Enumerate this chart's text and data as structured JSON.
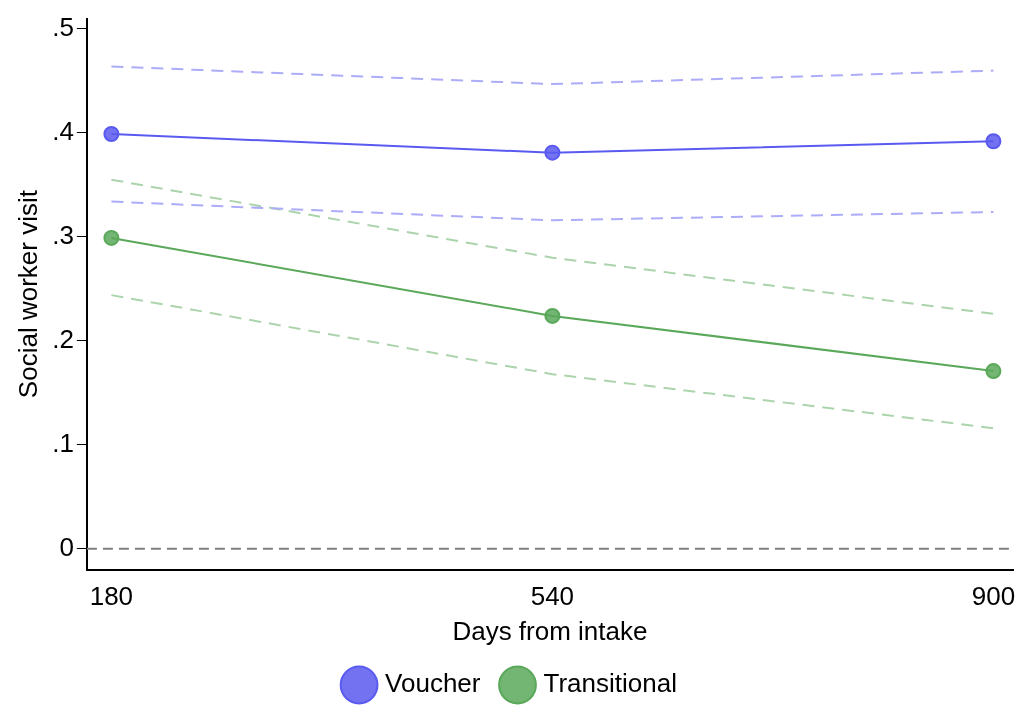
{
  "chart_data": {
    "type": "line",
    "xlabel": "Days from intake",
    "ylabel": "Social worker visit",
    "x": [
      180,
      540,
      900
    ],
    "series": [
      {
        "name": "Voucher",
        "color": "#5a5af0",
        "values": [
          0.399,
          0.381,
          0.392
        ]
      },
      {
        "color": "#acacf8",
        "values": [
          0.334,
          0.316,
          0.324
        ],
        "line_style": "dashed",
        "marker": "none"
      },
      {
        "color": "#acacf8",
        "values": [
          0.464,
          0.447,
          0.46
        ],
        "line_style": "dashed",
        "marker": "none"
      },
      {
        "name": "Transitional",
        "color": "#5aa85a",
        "values": [
          0.299,
          0.224,
          0.171
        ]
      },
      {
        "color": "#acd4ac",
        "values": [
          0.244,
          0.168,
          0.116
        ],
        "line_style": "dashed",
        "marker": "none"
      },
      {
        "color": "#acd4ac",
        "values": [
          0.355,
          0.28,
          0.226
        ],
        "line_style": "dashed",
        "marker": "none"
      }
    ],
    "xlim": [
      160,
      916
    ],
    "xticks": [
      180,
      540,
      900
    ],
    "ylim": [
      -0.02,
      0.51
    ],
    "yticks": [
      {
        "value": 0,
        "label": "0"
      },
      {
        "value": 0.1,
        "label": ".1"
      },
      {
        "value": 0.2,
        "label": ".2"
      },
      {
        "value": 0.3,
        "label": ".3"
      },
      {
        "value": 0.4,
        "label": ".4"
      },
      {
        "value": 0.5,
        "label": ".5"
      }
    ],
    "ref_lines": [
      {
        "axis": "y",
        "value": 0,
        "color": "#808080",
        "line_style": "dashed"
      }
    ],
    "grid": false,
    "legend": "bottom",
    "marker": "circle",
    "line_style": "solid"
  }
}
